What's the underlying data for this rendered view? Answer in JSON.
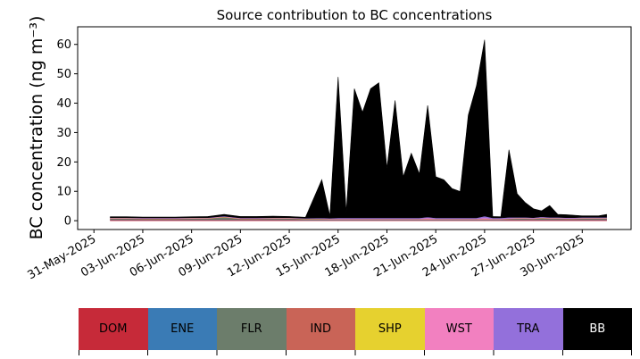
{
  "chart_data": {
    "type": "area",
    "stacked": true,
    "title": "Source contribution to BC concentrations",
    "xlabel": "",
    "ylabel": "BC concentration (ng m⁻³)",
    "ylim": [
      -3,
      66
    ],
    "yticks": [
      0,
      10,
      20,
      30,
      40,
      50,
      60
    ],
    "xlim": [
      "2025-05-30",
      "2025-07-03"
    ],
    "xticks": [
      "31-May-2025",
      "03-Jun-2025",
      "06-Jun-2025",
      "09-Jun-2025",
      "12-Jun-2025",
      "15-Jun-2025",
      "18-Jun-2025",
      "21-Jun-2025",
      "24-Jun-2025",
      "27-Jun-2025",
      "30-Jun-2025"
    ],
    "grid": false,
    "legend": {
      "position": "bottom",
      "items": [
        {
          "label": "DOM",
          "color": "#c62a39"
        },
        {
          "label": "ENE",
          "color": "#3a7bb5"
        },
        {
          "label": "FLR",
          "color": "#6c7d6b"
        },
        {
          "label": "IND",
          "color": "#c96457"
        },
        {
          "label": "SHP",
          "color": "#e6d12f"
        },
        {
          "label": "WST",
          "color": "#f280c0"
        },
        {
          "label": "TRA",
          "color": "#9370db"
        },
        {
          "label": "BB",
          "color": "#000000"
        }
      ]
    },
    "x": [
      "2025-06-01",
      "2025-06-02",
      "2025-06-03",
      "2025-06-04",
      "2025-06-05",
      "2025-06-06",
      "2025-06-07",
      "2025-06-08",
      "2025-06-09",
      "2025-06-10",
      "2025-06-11",
      "2025-06-12",
      "2025-06-13",
      "2025-06-14",
      "2025-06-14T12:00",
      "2025-06-15",
      "2025-06-15T12:00",
      "2025-06-16",
      "2025-06-16T12:00",
      "2025-06-17",
      "2025-06-17T12:00",
      "2025-06-18",
      "2025-06-18T12:00",
      "2025-06-19",
      "2025-06-19T12:00",
      "2025-06-20",
      "2025-06-20T12:00",
      "2025-06-21",
      "2025-06-21T12:00",
      "2025-06-22",
      "2025-06-22T12:00",
      "2025-06-23",
      "2025-06-23T12:00",
      "2025-06-24",
      "2025-06-24T12:00",
      "2025-06-25",
      "2025-06-25T12:00",
      "2025-06-26",
      "2025-06-26T12:00",
      "2025-06-27",
      "2025-06-27T12:00",
      "2025-06-28",
      "2025-06-28T12:00",
      "2025-06-29",
      "2025-06-29T12:00",
      "2025-06-30",
      "2025-06-30T12:00",
      "2025-07-01",
      "2025-07-01T12:00"
    ],
    "series": [
      {
        "name": "DOM",
        "color": "#c62a39",
        "values": [
          0.3,
          0.3,
          0.3,
          0.3,
          0.3,
          0.3,
          0.3,
          0.3,
          0.3,
          0.3,
          0.3,
          0.3,
          0.2,
          0.2,
          0.2,
          0.2,
          0.2,
          0.2,
          0.2,
          0.2,
          0.2,
          0.2,
          0.2,
          0.2,
          0.2,
          0.2,
          0.2,
          0.2,
          0.2,
          0.2,
          0.2,
          0.2,
          0.2,
          0.2,
          0.2,
          0.2,
          0.3,
          0.3,
          0.3,
          0.3,
          0.3,
          0.3,
          0.3,
          0.3,
          0.3,
          0.3,
          0.3,
          0.3,
          0.3
        ]
      },
      {
        "name": "ENE",
        "color": "#3a7bb5",
        "values": [
          0.1,
          0.1,
          0.1,
          0.1,
          0.1,
          0.1,
          0.1,
          0.1,
          0.1,
          0.1,
          0.1,
          0.1,
          0.1,
          0.1,
          0.1,
          0.1,
          0.1,
          0.1,
          0.1,
          0.1,
          0.1,
          0.1,
          0.1,
          0.1,
          0.1,
          0.1,
          0.1,
          0.1,
          0.1,
          0.1,
          0.1,
          0.1,
          0.1,
          0.1,
          0.1,
          0.1,
          0.1,
          0.1,
          0.1,
          0.1,
          0.1,
          0.1,
          0.1,
          0.1,
          0.1,
          0.1,
          0.1,
          0.1,
          0.1
        ]
      },
      {
        "name": "FLR",
        "color": "#6c7d6b",
        "values": [
          0.3,
          0.3,
          0.2,
          0.2,
          0.2,
          0.3,
          0.3,
          0.8,
          0.2,
          0.2,
          0.3,
          0.3,
          0.2,
          0.2,
          0.1,
          0.1,
          0.1,
          0.1,
          0.1,
          0.1,
          0.1,
          0.1,
          0.1,
          0.1,
          0.1,
          0.1,
          0.1,
          0.1,
          0.1,
          0.1,
          0.1,
          0.1,
          0.1,
          0.1,
          0.1,
          0.1,
          0.2,
          0.3,
          0.3,
          0.2,
          0.5,
          0.3,
          0.3,
          0.2,
          0.2,
          0.3,
          0.3,
          0.3,
          0.3
        ]
      },
      {
        "name": "IND",
        "color": "#c96457",
        "values": [
          0.1,
          0.1,
          0.1,
          0.1,
          0.1,
          0.1,
          0.1,
          0.1,
          0.1,
          0.1,
          0.1,
          0.1,
          0.1,
          0.1,
          0.1,
          0.1,
          0.1,
          0.1,
          0.1,
          0.1,
          0.1,
          0.1,
          0.1,
          0.1,
          0.1,
          0.1,
          0.1,
          0.1,
          0.1,
          0.1,
          0.1,
          0.1,
          0.1,
          0.1,
          0.1,
          0.1,
          0.1,
          0.1,
          0.1,
          0.1,
          0.1,
          0.1,
          0.1,
          0.1,
          0.1,
          0.1,
          0.1,
          0.1,
          0.1
        ]
      },
      {
        "name": "SHP",
        "color": "#e6d12f",
        "values": [
          0.05,
          0.05,
          0.05,
          0.05,
          0.05,
          0.05,
          0.05,
          0.05,
          0.05,
          0.05,
          0.05,
          0.05,
          0.05,
          0.05,
          0.05,
          0.05,
          0.05,
          0.05,
          0.05,
          0.05,
          0.05,
          0.05,
          0.05,
          0.05,
          0.05,
          0.05,
          0.05,
          0.05,
          0.05,
          0.05,
          0.05,
          0.05,
          0.05,
          0.05,
          0.05,
          0.05,
          0.05,
          0.05,
          0.05,
          0.05,
          0.05,
          0.05,
          0.05,
          0.05,
          0.05,
          0.05,
          0.05,
          0.05,
          0.05
        ]
      },
      {
        "name": "WST",
        "color": "#f280c0",
        "values": [
          0.1,
          0.1,
          0.1,
          0.1,
          0.1,
          0.1,
          0.1,
          0.1,
          0.1,
          0.1,
          0.1,
          0.1,
          0.1,
          0.1,
          0.1,
          0.1,
          0.1,
          0.1,
          0.1,
          0.1,
          0.1,
          0.1,
          0.1,
          0.1,
          0.1,
          0.1,
          0.4,
          0.1,
          0.1,
          0.1,
          0.1,
          0.1,
          0.1,
          0.4,
          0.1,
          0.1,
          0.1,
          0.1,
          0.1,
          0.1,
          0.1,
          0.1,
          0.1,
          0.1,
          0.1,
          0.1,
          0.1,
          0.1,
          0.1
        ]
      },
      {
        "name": "TRA",
        "color": "#9370db",
        "values": [
          0.1,
          0.1,
          0.1,
          0.1,
          0.1,
          0.1,
          0.1,
          0.1,
          0.1,
          0.1,
          0.1,
          0.1,
          0.1,
          0.2,
          0.2,
          0.3,
          0.3,
          0.3,
          0.3,
          0.3,
          0.3,
          0.3,
          0.3,
          0.3,
          0.3,
          0.3,
          0.3,
          0.3,
          0.3,
          0.3,
          0.3,
          0.3,
          0.3,
          0.6,
          0.3,
          0.3,
          0.3,
          0.2,
          0.2,
          0.2,
          0.2,
          0.2,
          0.2,
          0.2,
          0.2,
          0.2,
          0.2,
          0.2,
          0.2
        ]
      },
      {
        "name": "BB",
        "color": "#000000",
        "values": [
          0.3,
          0.3,
          0.3,
          0.3,
          0.3,
          0.3,
          0.4,
          0.6,
          0.5,
          0.5,
          0.5,
          0.4,
          0.3,
          13,
          0.8,
          48,
          2,
          44,
          36,
          44,
          46,
          17,
          40,
          14,
          22,
          15,
          38,
          14,
          13,
          10,
          9,
          35,
          45,
          60,
          0.5,
          0.4,
          23,
          8,
          5,
          3,
          2,
          4,
          1,
          1,
          0.8,
          0.5,
          0.5,
          0.5,
          1
        ]
      }
    ]
  }
}
